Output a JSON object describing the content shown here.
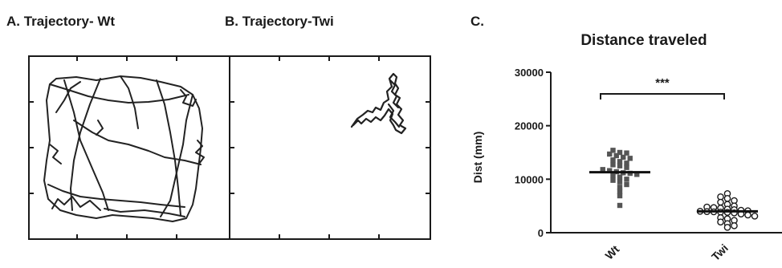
{
  "panels": {
    "a_title": "A. Trajectory- Wt",
    "b_title": "B. Trajectory-Twi",
    "c_label": "C."
  },
  "chart_data": [
    {
      "type": "scatter",
      "title": "Distance traveled",
      "xlabel": "",
      "ylabel": "Dist (mm)",
      "ylim": [
        0,
        30000
      ],
      "yticks": [
        0,
        10000,
        20000,
        30000
      ],
      "categories": [
        "Wt",
        "Twi"
      ],
      "series": [
        {
          "category": "Wt",
          "marker": "filled-square",
          "mean": 11300,
          "values": [
            15400,
            15000,
            14900,
            14700,
            14400,
            14100,
            13900,
            13600,
            13300,
            13000,
            12700,
            12500,
            12200,
            11800,
            11600,
            11400,
            11200,
            11100,
            10900,
            10700,
            10400,
            10000,
            9800,
            9500,
            9000,
            8500,
            7700,
            6900,
            5100
          ]
        },
        {
          "category": "Twi",
          "marker": "open-circle",
          "mean": 4000,
          "values": [
            7300,
            6700,
            6400,
            6000,
            5700,
            5300,
            5000,
            4800,
            4700,
            4600,
            4400,
            4300,
            4200,
            4100,
            4000,
            3950,
            3900,
            3850,
            3800,
            3700,
            3500,
            3300,
            3100,
            2800,
            2600,
            2300,
            2000,
            1700,
            1300,
            1000
          ]
        }
      ],
      "annotation": "***"
    }
  ]
}
